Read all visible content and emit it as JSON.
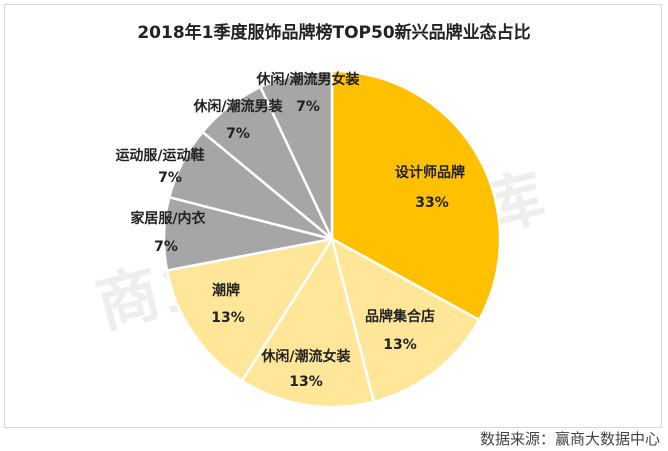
{
  "chart_data": {
    "type": "pie",
    "title": "2018年1季度服饰品牌榜TOP50新兴品牌业态占比",
    "slices": [
      {
        "label": "设计师品牌",
        "value": 33,
        "value_label": "33%",
        "color": "#FFC000"
      },
      {
        "label": "品牌集合店",
        "value": 13,
        "value_label": "13%",
        "color": "#FFE699"
      },
      {
        "label": "休闲/潮流女装",
        "value": 13,
        "value_label": "13%",
        "color": "#FFE699"
      },
      {
        "label": "潮牌",
        "value": 13,
        "value_label": "13%",
        "color": "#FFE699"
      },
      {
        "label": "家居服/内衣",
        "value": 7,
        "value_label": "7%",
        "color": "#A6A6A6"
      },
      {
        "label": "运动服/运动鞋",
        "value": 7,
        "value_label": "7%",
        "color": "#A6A6A6"
      },
      {
        "label": "休闲/潮流男装",
        "value": 7,
        "value_label": "7%",
        "color": "#A6A6A6"
      },
      {
        "label": "休闲/潮流男女装",
        "value": 7,
        "value_label": "7%",
        "color": "#A6A6A6"
      }
    ],
    "start_angle": "top",
    "direction": "clockwise",
    "legend": "none"
  },
  "watermark": "商业地产云智库",
  "source": "数据来源：赢商大数据中心"
}
